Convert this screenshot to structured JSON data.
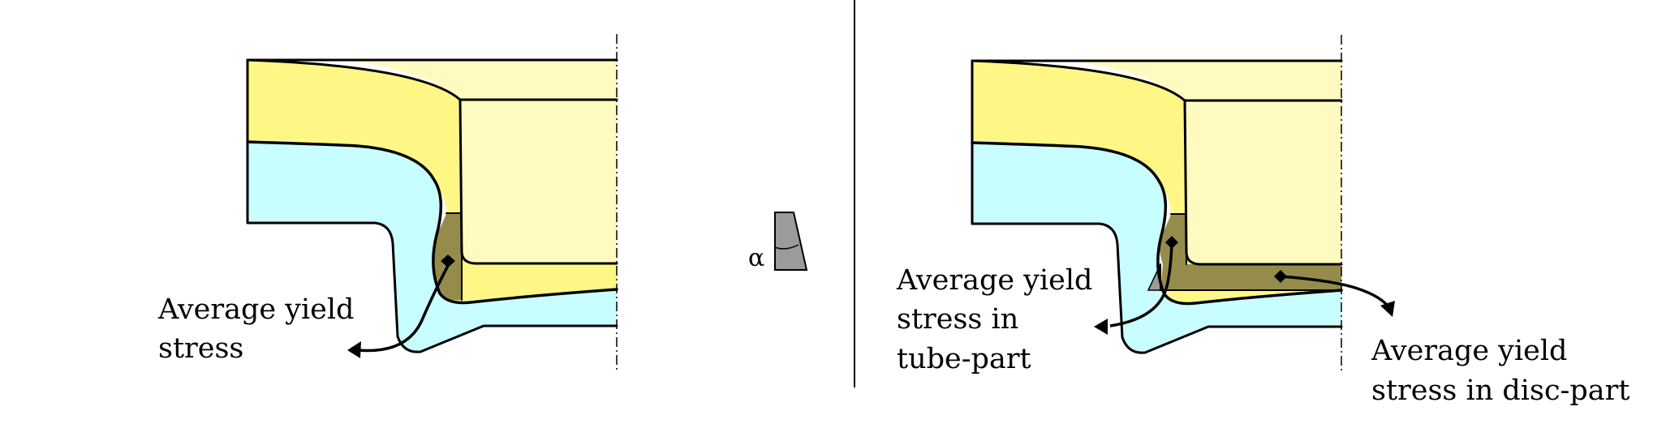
{
  "colors": {
    "yellow_dark": "#FFF785",
    "yellow_light": "#FFFBC0",
    "cyan": "#C8FEFF",
    "olive": "#958C4C",
    "grey_wedge": "#9B9B9B",
    "stroke": "#000000"
  },
  "left_panel": {
    "label_lines": [
      "Average yield",
      "stress"
    ]
  },
  "center": {
    "wedge_symbol": "α"
  },
  "right_panel": {
    "tube_label_lines": [
      "Average yield",
      "stress in",
      "tube-part"
    ],
    "disc_label_lines": [
      "Average yield",
      "stress in disc-part"
    ]
  }
}
